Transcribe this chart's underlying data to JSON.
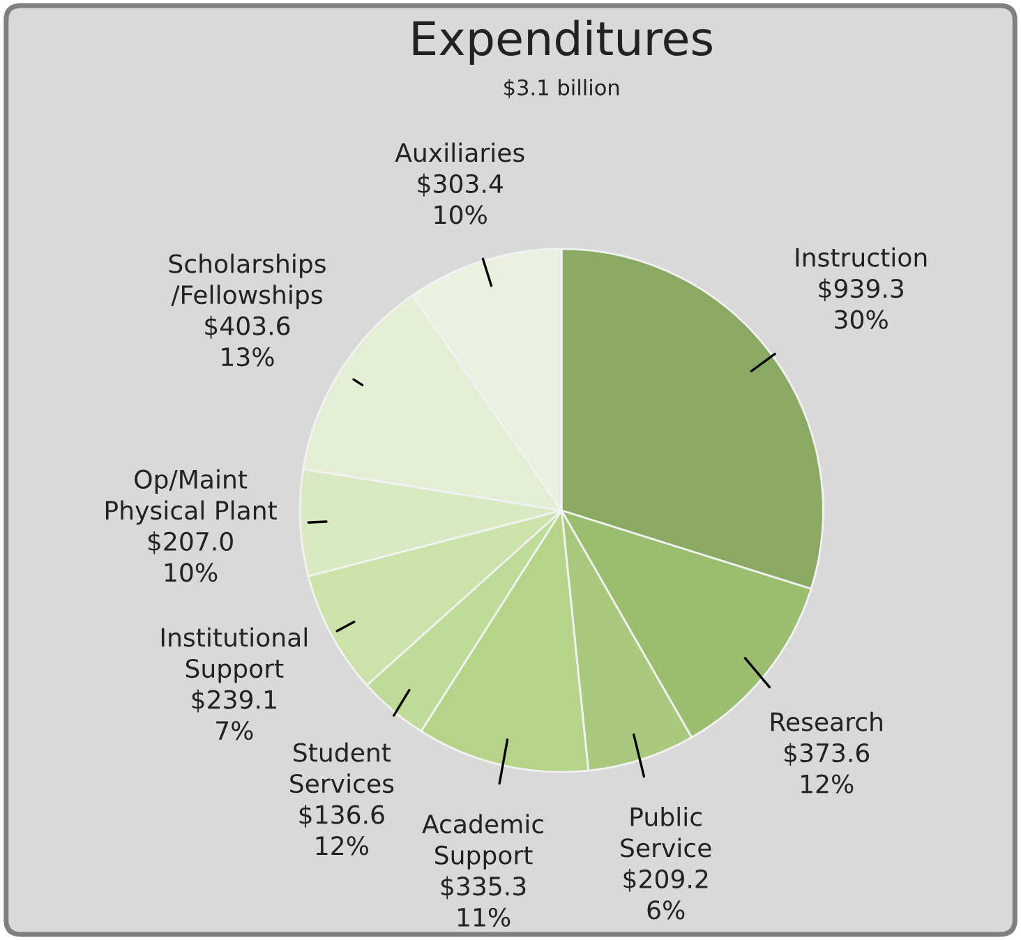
{
  "chart_data": {
    "type": "pie",
    "title": "Expenditures",
    "subtitle": "$3.1 billion",
    "categories": [
      "Instruction",
      "Research",
      "Public\nService",
      "Academic\nSupport",
      "Student\nServices",
      "Institutional\nSupport",
      "Op/Maint\nPhysical Plant",
      "Scholarships\n/Fellowships",
      "Auxiliaries"
    ],
    "values": [
      939.3,
      373.6,
      209.2,
      335.3,
      136.6,
      239.1,
      207.0,
      403.6,
      303.4
    ],
    "value_labels": [
      "$939.3\n30%",
      "$373.6\n12%",
      "$209.2\n6%",
      "$335.3\n11%",
      "$136.6\n12%",
      "$239.1\n7%",
      "$207.0\n10%",
      "$403.6\n13%",
      "$303.4\n10%"
    ],
    "colors": [
      "#8aa963",
      "#9bbd6f",
      "#a9c97e",
      "#b5d48a",
      "#bfdb98",
      "#cbe2aa",
      "#d9eac2",
      "#e3eed5",
      "#eaf1e0"
    ]
  }
}
